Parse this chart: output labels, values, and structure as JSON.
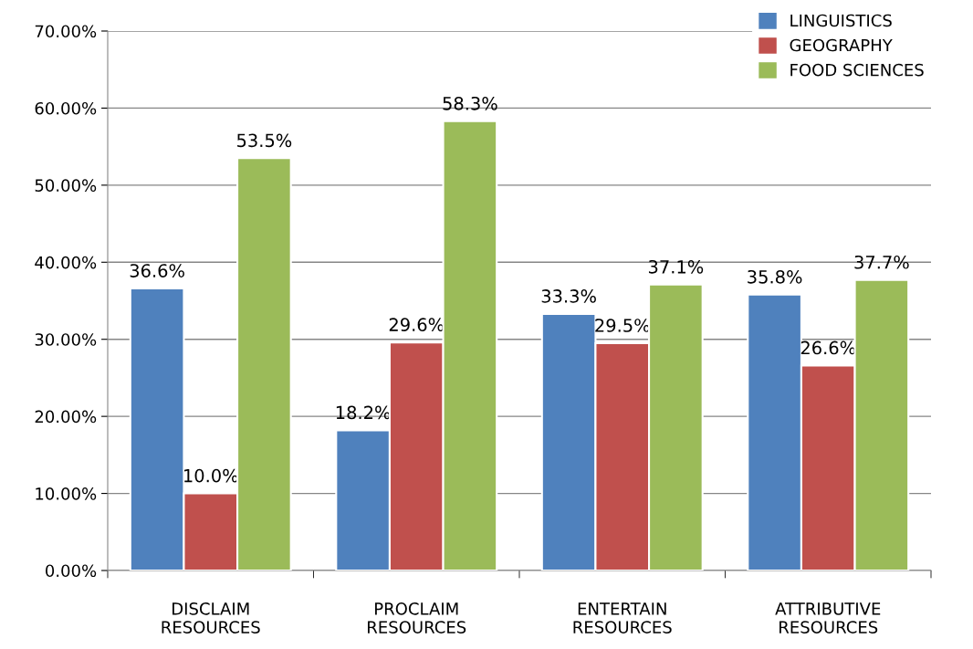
{
  "chart_data": {
    "type": "bar",
    "categories": [
      "DISCLAIM\nRESOURCES",
      "PROCLAIM\nRESOURCES",
      "ENTERTAIN\nRESOURCES",
      "ATTRIBUTIVE\nRESOURCES"
    ],
    "series": [
      {
        "name": "LINGUISTICS",
        "color": "#4f81bd",
        "values": [
          36.6,
          18.2,
          33.3,
          35.8
        ],
        "value_labels": [
          "36.6%",
          "18.2%",
          "33.3%",
          "35.8%"
        ]
      },
      {
        "name": "GEOGRAPHY",
        "color": "#c0504d",
        "values": [
          10.0,
          29.6,
          29.5,
          26.6
        ],
        "value_labels": [
          "10.0%",
          "29.6%",
          "29.5%",
          "26.6%"
        ]
      },
      {
        "name": "FOOD SCIENCES",
        "color": "#9bbb59",
        "values": [
          53.5,
          58.3,
          37.1,
          37.7
        ],
        "value_labels": [
          "53.5%",
          "58.3%",
          "37.1%",
          "37.7%"
        ]
      }
    ],
    "ylim": [
      0,
      70
    ],
    "yticks": [
      {
        "value": 0,
        "label": "0.00%"
      },
      {
        "value": 10,
        "label": "10.00%"
      },
      {
        "value": 20,
        "label": "20.00%"
      },
      {
        "value": 30,
        "label": "30.00%"
      },
      {
        "value": 40,
        "label": "40.00%"
      },
      {
        "value": 50,
        "label": "50.00%"
      },
      {
        "value": 60,
        "label": "60.00%"
      },
      {
        "value": 70,
        "label": "70.00%"
      }
    ],
    "grid": "y",
    "legend": "top right"
  }
}
